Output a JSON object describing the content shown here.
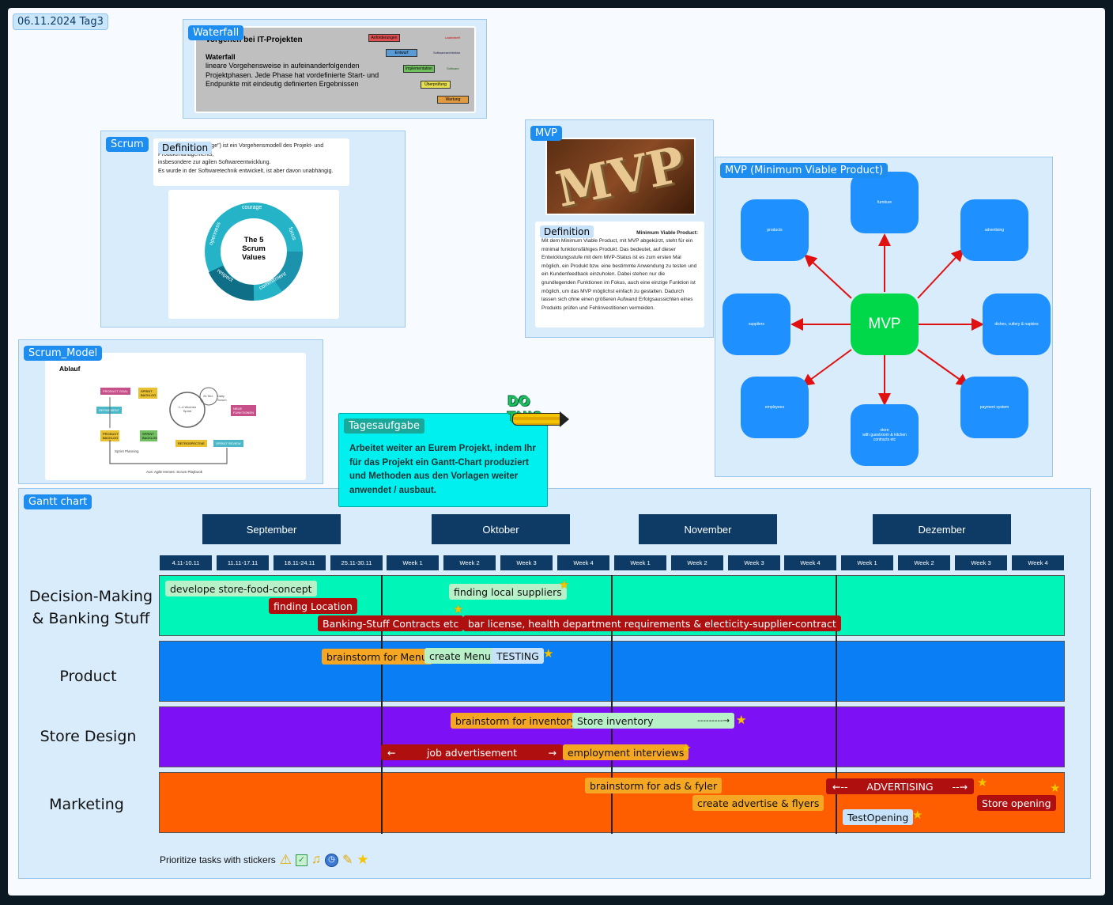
{
  "board": {
    "date_label": "06.11.2024 Tag3"
  },
  "waterfall": {
    "tag": "Waterfall",
    "heading": "Vorgehen bei IT-Projekten",
    "subtitle": "Waterfall",
    "text": "lineare Vorgehensweise in aufeinanderfolgenden Projektphasen. Jede Phase hat vordefinierte Start- und Endpunkte mit eindeutig definierten Ergebnissen",
    "phases": [
      "Anforderungen",
      "Entwurf",
      "Implementation",
      "Überprüfung",
      "Wartung"
    ],
    "side_notes": [
      "Lastenheft",
      "Softwarearchitektur",
      "Software"
    ]
  },
  "scrum": {
    "tag": "Scrum",
    "definition_tag": "Definition",
    "text_1": "Scrum (engl. „Gedränge\") ist ein Vorgehensmodell des Projekt- und Produktmanagements,",
    "text_2": "insbesondere zur agilen Softwareentwicklung.",
    "text_3": "Es wurde in der Softwaretechnik entwickelt, ist aber davon unabhängig.",
    "values_title": "The 5 Scrum Values",
    "values": [
      "courage",
      "focus",
      "commitment",
      "respect",
      "openness"
    ]
  },
  "scrum_model": {
    "tag": "Scrum_Model",
    "heading": "Ablauf",
    "caption": "Aus: Agile Heroes: Scrum Playbook",
    "labels": [
      "PRODUCT GOAL",
      "SPRINT BACKLOG",
      "NEUE FUNKTIONEN",
      "PRODUCT BACKLOG",
      "REFINEMENT",
      "SPRINT BACKLOG",
      "RETROSPECTIVE",
      "SPRINT REVIEW",
      "Sprint Planning",
      "1–4 Wochen Sprint",
      "24 Std.",
      "Daily Scrum"
    ]
  },
  "mvp": {
    "tag": "MVP",
    "image_text": "MVP",
    "definition_tag": "Definition",
    "definition_lines": [
      "Minimum Viable Product:",
      "Mit dem Minimum Viable Product, mit MVP abgekürzt, steht für ein minimal funktionsfähiges Produkt. Das bedeutet, auf dieser Entwicklungsstufe mit dem MVP-Status ist es zum ersten Mal möglich, ein Produkt bzw. eine bestimmte Anwendung zu testen und ein Kundenfeedback einzuholen. Dabei stehen nur die grundlegenden Funktionen im Fokus, auch eine einzige Funktion ist möglich, um das MVP möglichst einfach zu gestalten. Dadurch lassen sich ohne einen größeren Aufwand Erfolgsaussichten eines Produkts prüfen und Fehlinvestitionen vermeiden."
    ]
  },
  "mvp_map": {
    "tag": "MVP (Minimum Viable Product)",
    "center": "MVP",
    "nodes": {
      "top": "furniture",
      "top_left": "products",
      "top_right": "advertising",
      "left": "suppliers",
      "right": "dishes, cutlery & napkins",
      "bottom_left": "employees",
      "bottom": "store\nwith guestroom & kitchen\ncontracts etc",
      "bottom_right": "payment system"
    },
    "colors": {
      "node": "#1e90ff",
      "center": "#00d84a",
      "arrow": "#e01010"
    }
  },
  "task": {
    "tag": "Tagesaufgabe",
    "sticker": "DO THIS",
    "text": "Arbeitet weiter an Eurem Projekt, indem Ihr für das Projekt ein Gantt-Chart produziert und Methoden aus den Vorlagen weiter anwendet / ausbaut."
  },
  "gantt": {
    "tag": "Gantt chart",
    "months": [
      "September",
      "Oktober",
      "November",
      "Dezember"
    ],
    "weeks": [
      "4.11-10.11",
      "11.11-17.11",
      "18.11-24.11",
      "25.11-30.11",
      "Week 1",
      "Week 2",
      "Week 3",
      "Week 4",
      "Week 1",
      "Week 2",
      "Week 3",
      "Week 4",
      "Week 1",
      "Week 2",
      "Week 3",
      "Week 4"
    ],
    "rows": {
      "decision": "Decision-Making & Banking Stuff",
      "product": "Product",
      "store": "Store Design",
      "marketing": "Marketing"
    },
    "tasks": {
      "store_food_concept": "develope store-food-concept",
      "finding_location": "finding Location",
      "local_suppliers": "finding local suppliers",
      "banking_contracts": "Banking-Stuff Contracts etc",
      "bar_license": "bar license, health department requirements & electicity-supplier-contract",
      "brainstorm_menu": "brainstorm for Menu",
      "create_menu": "create Menu",
      "testing": "TESTING",
      "brainstorm_inventory": "brainstorm for inventory",
      "store_inventory": "Store inventory",
      "store_inventory_arrow": "---------→",
      "job_ad_left": "←",
      "job_ad": "job advertisement",
      "job_ad_right": "→",
      "employment_interviews": "employment interviews",
      "brainstorm_ads": "brainstorm for ads & fyler",
      "advertising_left": "←--",
      "advertising": "ADVERTISING",
      "advertising_right": "--→",
      "create_advertise": "create advertise & flyers",
      "test_opening": "TestOpening",
      "store_opening": "Store opening"
    },
    "colors": {
      "decision": "#00f5b8",
      "product": "#0a7ff5",
      "store": "#7e10f5",
      "marketing": "#ff5e00"
    },
    "footer": "Prioritize tasks with stickers",
    "footer_icons": [
      "warning-icon",
      "checkbox-icon",
      "bell-icon",
      "clock-icon",
      "pencil-icon",
      "star-icon"
    ]
  }
}
